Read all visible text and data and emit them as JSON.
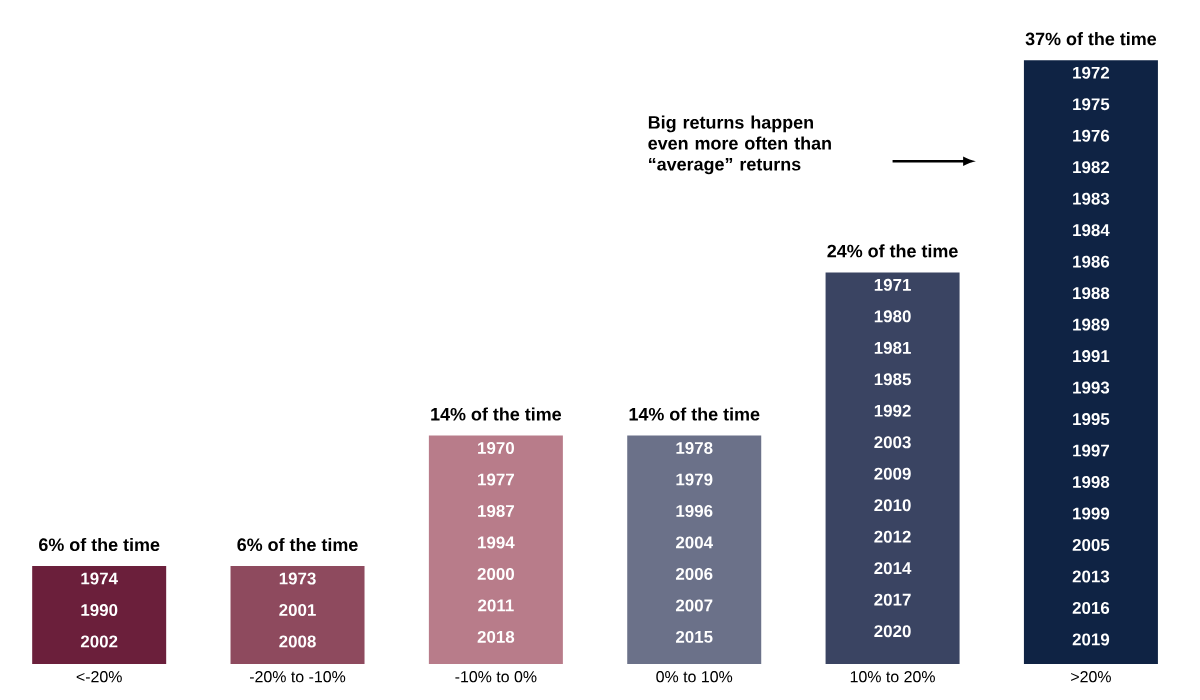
{
  "chart_data": {
    "type": "bar",
    "categories": [
      "<-20%",
      "-20% to -10%",
      "-10% to 0%",
      "0% to 10%",
      "10% to 20%",
      ">20%"
    ],
    "values": [
      6,
      6,
      14,
      14,
      24,
      37
    ],
    "colors": [
      "#6b1f3b",
      "#8e4a5e",
      "#b87c8a",
      "#6b7189",
      "#3a4462",
      "#0f2344"
    ],
    "value_labels": [
      "6% of the time",
      "6% of the time",
      "14% of the time",
      "14% of the time",
      "24% of the time",
      "37% of the time"
    ],
    "annotations": [
      "1974 1990 2002",
      "1973 2001 2008",
      "1970 1977 1987 1994 2000 2011 2018",
      "1978 1979 1996 2004 2006 2007 2015",
      "1971 1980 1981 1985 1992 2003 2009 2010 2012 2014 2017 2020",
      "1972 1975 1976 1982 1983 1984 1986 1988 1989 1991 1993 1995 1997 1998 1999 2005 2013 2016 2019",
      "Big returns happen even more often than “average” returns"
    ]
  }
}
